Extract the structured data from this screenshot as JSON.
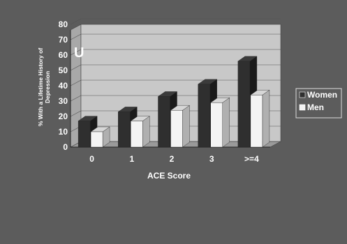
{
  "chart_data": {
    "type": "bar",
    "bar_style": "3d-clustered",
    "categories": [
      "0",
      "1",
      "2",
      "3",
      ">=4"
    ],
    "series": [
      {
        "name": "Women",
        "values": [
          17,
          23,
          33,
          41,
          56
        ]
      },
      {
        "name": "Men",
        "values": [
          10,
          17,
          24,
          29,
          34
        ]
      }
    ],
    "xlabel": "ACE Score",
    "ylabel_lines": [
      "% With a Lifetime History of",
      "Depression"
    ],
    "ylim": [
      0,
      80
    ],
    "yticks": [
      "0",
      "10",
      "20",
      "30",
      "40",
      "50",
      "60",
      "70",
      "80"
    ],
    "grid": true,
    "legend": "right",
    "colors": {
      "background": "#5c5c5c",
      "plot_wall": "#c8c8c8",
      "women": "#2f2f2f",
      "men": "#f4f4f4",
      "text": "#ffffff"
    }
  },
  "overlay_fragments": [
    "U",
    " "
  ]
}
